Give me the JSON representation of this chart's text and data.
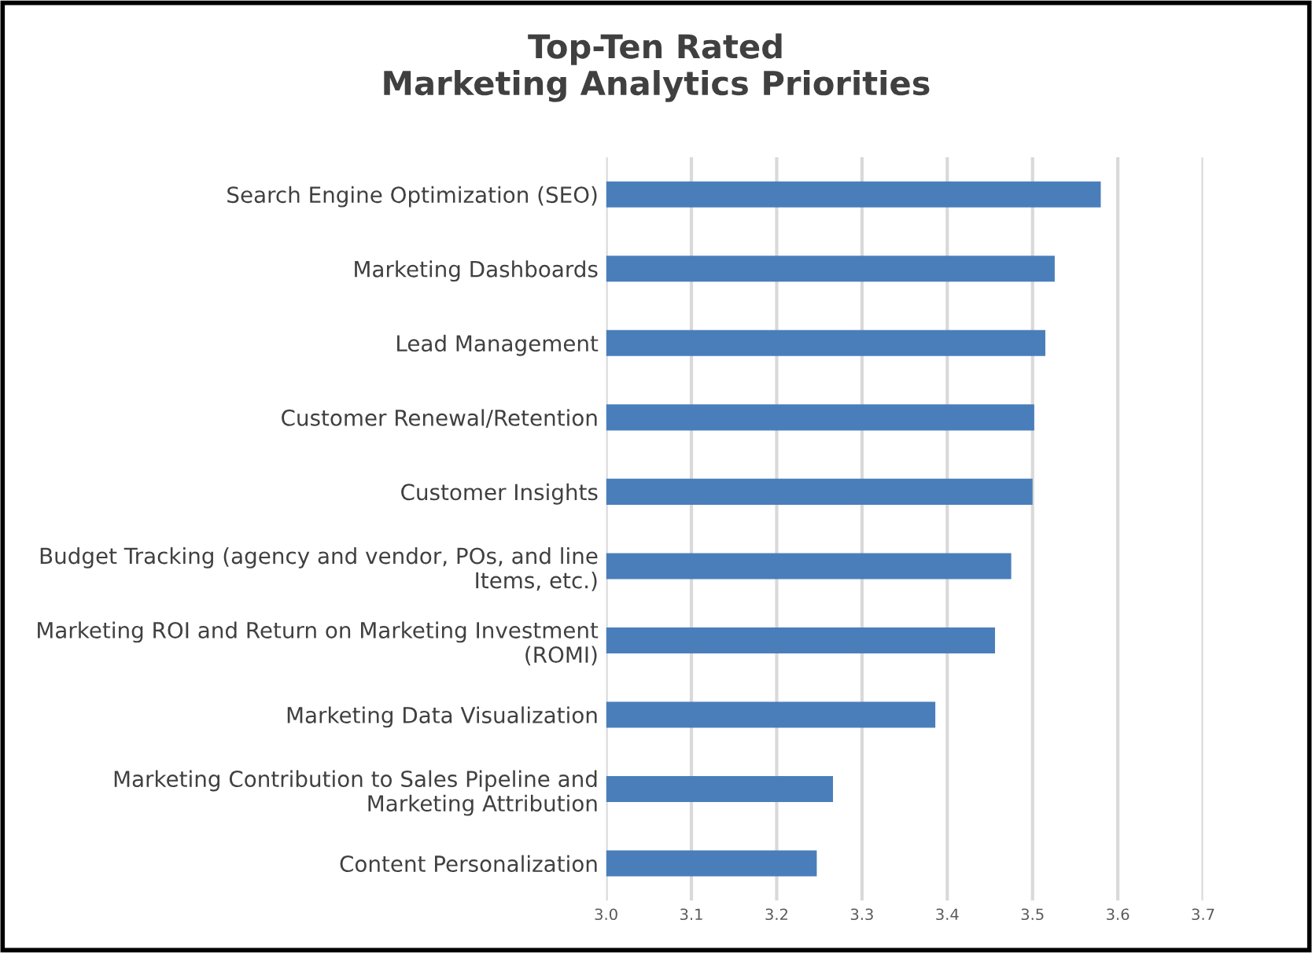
{
  "chart_data": {
    "type": "bar",
    "orientation": "horizontal",
    "title": "Top-Ten Rated\nMarketing Analytics Priorities",
    "categories": [
      "Search Engine Optimization (SEO)",
      "Marketing Dashboards",
      "Lead Management",
      "Customer Renewal/Retention",
      "Customer Insights",
      "Budget Tracking (agency and vendor, POs, and line\nItems, etc.)",
      "Marketing ROI and Return on Marketing Investment\n(ROMI)",
      "Marketing Data Visualization",
      "Marketing Contribution to Sales Pipeline and\nMarketing Attribution",
      "Content Personalization"
    ],
    "values": [
      3.58,
      3.526,
      3.515,
      3.502,
      3.5,
      3.475,
      3.456,
      3.386,
      3.266,
      3.247
    ],
    "color": "#4a7ebb",
    "xlim": [
      3.0,
      3.7
    ],
    "xticks": [
      {
        "value": 3.0,
        "label": "3.0"
      },
      {
        "value": 3.1,
        "label": "3.1"
      },
      {
        "value": 3.2,
        "label": "3.2"
      },
      {
        "value": 3.3,
        "label": "3.3"
      },
      {
        "value": 3.4,
        "label": "3.4"
      },
      {
        "value": 3.5,
        "label": "3.5"
      },
      {
        "value": 3.6,
        "label": "3.6"
      },
      {
        "value": 3.7,
        "label": "3.7"
      }
    ],
    "grid": "x",
    "legend": false
  }
}
